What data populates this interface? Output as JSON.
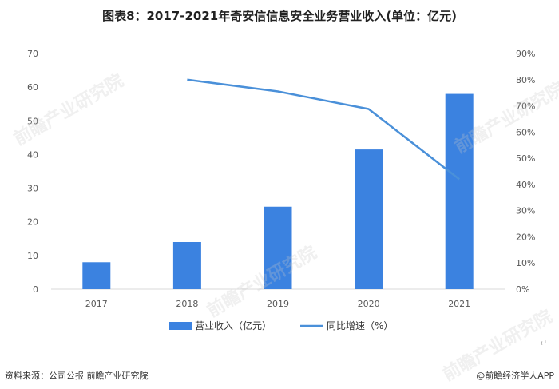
{
  "title": "图表8：2017-2021年奇安信信息安全业务营业收入(单位：亿元)",
  "chart_data": {
    "type": "bar",
    "categories": [
      "2017",
      "2018",
      "2019",
      "2020",
      "2021"
    ],
    "series": [
      {
        "name": "营业收入（亿元）",
        "type": "bar",
        "axis": "left",
        "values": [
          8.0,
          14.0,
          24.5,
          41.5,
          58.0
        ],
        "color": "#3b82e0"
      },
      {
        "name": "同比增速（%）",
        "type": "line",
        "axis": "right",
        "values": [
          null,
          80.0,
          75.5,
          68.8,
          42.0
        ],
        "color": "#4a90d9"
      }
    ],
    "y_left": {
      "min": 0,
      "max": 70,
      "ticks": [
        "0",
        "10",
        "20",
        "30",
        "40",
        "50",
        "60",
        "70"
      ]
    },
    "y_right": {
      "min": 0,
      "max": 90,
      "ticks": [
        "0%",
        "10%",
        "20%",
        "30%",
        "40%",
        "50%",
        "60%",
        "70%",
        "80%",
        "90%"
      ]
    },
    "grid": false,
    "legend": "bottom"
  },
  "footer": {
    "source": "资料来源：公司公报 前瞻产业研究院",
    "brand": "@前瞻经济学人APP"
  },
  "watermark": "前瞻产业研究院",
  "return_mark": "↵"
}
